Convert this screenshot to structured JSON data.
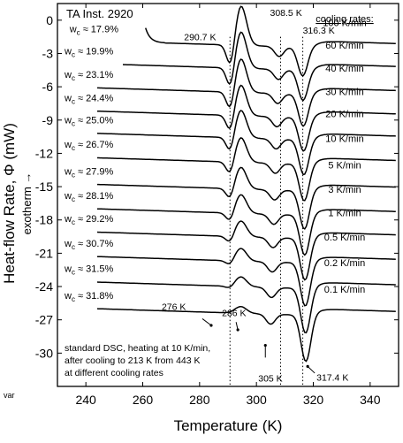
{
  "chart_data": {
    "type": "line",
    "instrument_label": "TA Inst. 2920",
    "xlabel": "Temperature  (K)",
    "ylabel": "Heat-flow Rate, Φ  (mW)",
    "exotherm_label": "exotherm →",
    "corner_label": "var",
    "xlim": [
      230,
      350
    ],
    "ylim": [
      -33,
      1.5
    ],
    "xticks": [
      240,
      260,
      280,
      300,
      320,
      340
    ],
    "yticks": [
      0,
      -3,
      -6,
      -9,
      -12,
      -15,
      -18,
      -21,
      -24,
      -27,
      -30
    ],
    "cooling_rates_title": "cooling rates:",
    "caption_lines": [
      "standard DSC, heating at 10 K/min,",
      "after cooling to 213 K  from 443 K",
      "at different cooling rates"
    ],
    "reference_lines_K": [
      290.7,
      308.5,
      316.3
    ],
    "annotations": [
      {
        "text": "290.7 K",
        "x": 290.7,
        "y": -1.8
      },
      {
        "text": "308.5 K",
        "x": 308.5,
        "y": 0.4
      },
      {
        "text": "316.3 K",
        "x": 316.3,
        "y": -1.2
      },
      {
        "text": "276 K",
        "x": 276,
        "y": -26.6
      },
      {
        "text": "286 K",
        "x": 286,
        "y": -27.0
      },
      {
        "text": "305 K",
        "x": 305,
        "y": -31.3
      },
      {
        "text": "317.4 K",
        "x": 317.4,
        "y": -32.0
      }
    ],
    "series": [
      {
        "rate": "100 K/min",
        "wc": "w_c ≈ 17.9%",
        "start_x": 261,
        "base_y": -2.0
      },
      {
        "rate": "60 K/min",
        "wc": "w_c ≈ 19.9%",
        "start_x": 253,
        "base_y": -4.0
      },
      {
        "rate": "40 K/min",
        "wc": "w_c ≈ 23.1%",
        "start_x": 244,
        "base_y": -6.1
      },
      {
        "rate": "30 K/min",
        "wc": "w_c ≈ 24.4%",
        "start_x": 244,
        "base_y": -8.2
      },
      {
        "rate": "20 K/min",
        "wc": "w_c ≈ 25.0%",
        "start_x": 244,
        "base_y": -10.2
      },
      {
        "rate": "10 K/min",
        "wc": "w_c ≈ 26.7%",
        "start_x": 244,
        "base_y": -12.4
      },
      {
        "rate": "5 K/min",
        "wc": "w_c ≈ 27.9%",
        "start_x": 244,
        "base_y": -14.8
      },
      {
        "rate": "3 K/min",
        "wc": "w_c ≈ 28.1%",
        "start_x": 244,
        "base_y": -17.0
      },
      {
        "rate": "1 K/min",
        "wc": "w_c ≈ 29.2%",
        "start_x": 244,
        "base_y": -19.1
      },
      {
        "rate": "0.5 K/min",
        "wc": "w_c ≈ 30.7%",
        "start_x": 244,
        "base_y": -21.3
      },
      {
        "rate": "0.2 K/min",
        "wc": "w_c ≈ 31.5%",
        "start_x": 244,
        "base_y": -23.6
      },
      {
        "rate": "0.1 K/min",
        "wc": "w_c ≈ 31.8%",
        "start_x": 244,
        "base_y": -26.0
      }
    ]
  }
}
